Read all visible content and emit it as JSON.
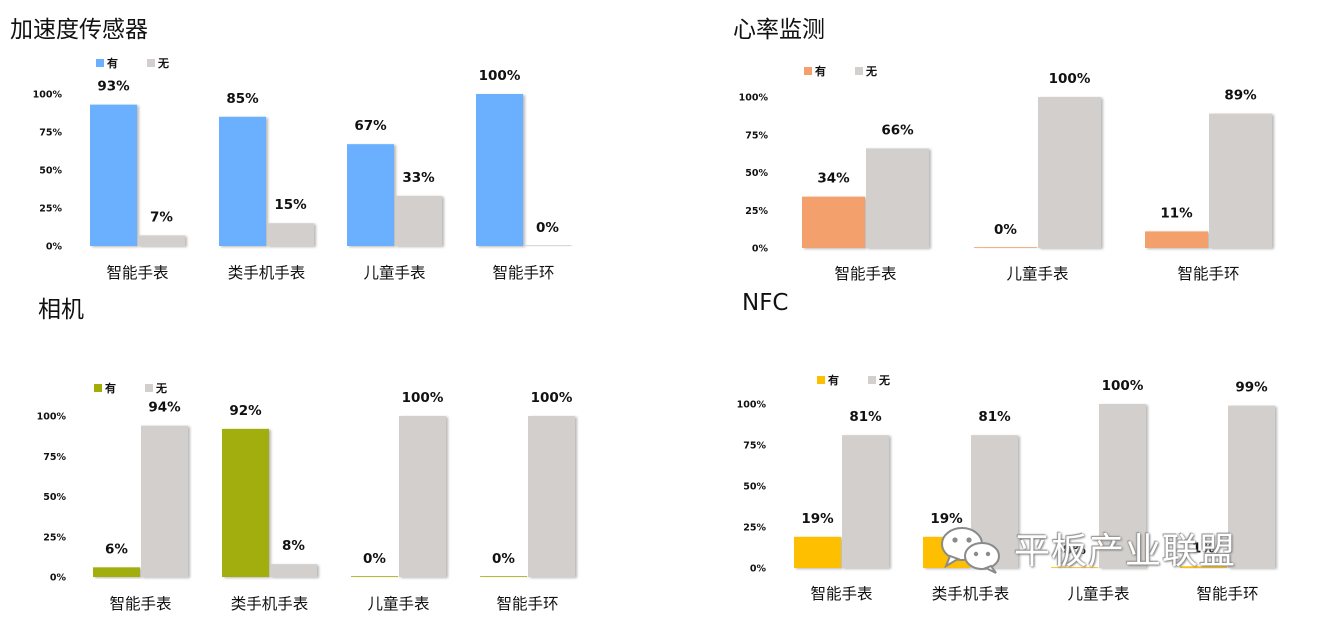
{
  "colors": {
    "no": "#d3cfcc",
    "accel_yes": "#6ab0ff",
    "heart_yes": "#f3a06d",
    "camera_yes": "#a2ae07",
    "nfc_yes": "#fdbf00"
  },
  "legend": {
    "yes": "有",
    "no": "无"
  },
  "watermark": {
    "text": "平板产业联盟",
    "icon": "wechat-icon"
  },
  "chart_data": [
    {
      "id": "accel",
      "type": "bar",
      "title": "加速度传感器",
      "categories": [
        "智能手表",
        "类手机手表",
        "儿童手表",
        "智能手环"
      ],
      "series": [
        {
          "name": "有",
          "values": [
            93,
            85,
            67,
            100
          ],
          "labels": [
            "93%",
            "85%",
            "67%",
            "100%"
          ]
        },
        {
          "name": "无",
          "values": [
            7,
            15,
            33,
            0
          ],
          "labels": [
            "7%",
            "15%",
            "33%",
            "0%"
          ]
        }
      ],
      "yticks": [
        "0%",
        "25%",
        "50%",
        "75%",
        "100%"
      ],
      "ylim": [
        0,
        100
      ],
      "legend": "top-left",
      "grid": false
    },
    {
      "id": "heart",
      "type": "bar",
      "title": "心率监测",
      "categories": [
        "智能手表",
        "儿童手表",
        "智能手环"
      ],
      "series": [
        {
          "name": "有",
          "values": [
            34,
            0,
            11
          ],
          "labels": [
            "34%",
            "0%",
            "11%"
          ]
        },
        {
          "name": "无",
          "values": [
            66,
            100,
            89
          ],
          "labels": [
            "66%",
            "100%",
            "89%"
          ]
        }
      ],
      "yticks": [
        "0%",
        "25%",
        "50%",
        "75%",
        "100%"
      ],
      "ylim": [
        0,
        100
      ],
      "legend": "top-left",
      "grid": false
    },
    {
      "id": "camera",
      "type": "bar",
      "title": "相机",
      "categories": [
        "智能手表",
        "类手机手表",
        "儿童手表",
        "智能手环"
      ],
      "series": [
        {
          "name": "有",
          "values": [
            6,
            92,
            0,
            0
          ],
          "labels": [
            "6%",
            "92%",
            "0%",
            "0%"
          ]
        },
        {
          "name": "无",
          "values": [
            94,
            8,
            100,
            100
          ],
          "labels": [
            "94%",
            "8%",
            "100%",
            "100%"
          ]
        }
      ],
      "yticks": [
        "0%",
        "25%",
        "50%",
        "75%",
        "100%"
      ],
      "ylim": [
        0,
        100
      ],
      "legend": "top-left",
      "grid": false
    },
    {
      "id": "nfc",
      "type": "bar",
      "title": "NFC",
      "categories": [
        "智能手表",
        "类手机手表",
        "儿童手表",
        "智能手环"
      ],
      "series": [
        {
          "name": "有",
          "values": [
            19,
            19,
            0,
            1
          ],
          "labels": [
            "19%",
            "19%",
            "0%",
            "1%"
          ]
        },
        {
          "name": "无",
          "values": [
            81,
            81,
            100,
            99
          ],
          "labels": [
            "81%",
            "81%",
            "100%",
            "99%"
          ]
        }
      ],
      "yticks": [
        "0%",
        "25%",
        "50%",
        "75%",
        "100%"
      ],
      "ylim": [
        0,
        100
      ],
      "legend": "top-left",
      "grid": false
    }
  ]
}
